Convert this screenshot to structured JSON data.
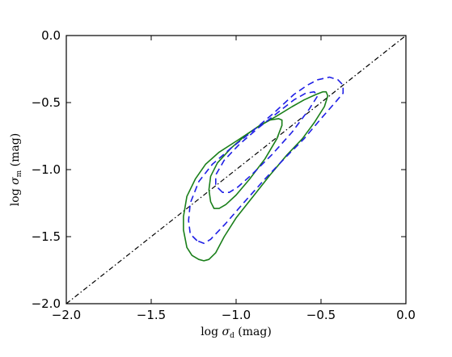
{
  "chart_data": {
    "type": "line",
    "title": "",
    "xlabel": {
      "prefix": "log ",
      "symbol": "σ",
      "subscript": "d",
      "unit": " (mag)"
    },
    "ylabel": {
      "prefix": "log ",
      "symbol": "σ",
      "subscript": "m",
      "unit": " (mag)"
    },
    "xlim": [
      -2.0,
      0.0
    ],
    "ylim": [
      -2.0,
      0.0
    ],
    "x_ticks": [
      -2.0,
      -1.5,
      -1.0,
      -0.5,
      0.0
    ],
    "x_tick_labels": [
      "−2.0",
      "−1.5",
      "−1.0",
      "−0.5",
      "0.0"
    ],
    "y_ticks": [
      -2.0,
      -1.5,
      -1.0,
      -0.5,
      0.0
    ],
    "y_tick_labels": [
      "−2.0",
      "−1.5",
      "−1.0",
      "−0.5",
      "0.0"
    ],
    "grid": false,
    "legend": "none",
    "series": [
      {
        "style": "dashdot",
        "color": "#000000",
        "closed": false,
        "points": [
          [
            -2.0,
            -2.0
          ],
          [
            0.0,
            0.0
          ]
        ]
      },
      {
        "style": "solid",
        "color": "#1a7f1a",
        "closed": true,
        "points": [
          [
            -1.19,
            -1.68
          ],
          [
            -1.22,
            -1.67
          ],
          [
            -1.26,
            -1.64
          ],
          [
            -1.29,
            -1.58
          ],
          [
            -1.31,
            -1.45
          ],
          [
            -1.31,
            -1.35
          ],
          [
            -1.29,
            -1.2
          ],
          [
            -1.24,
            -1.07
          ],
          [
            -1.18,
            -0.96
          ],
          [
            -1.1,
            -0.87
          ],
          [
            -0.99,
            -0.78
          ],
          [
            -0.87,
            -0.68
          ],
          [
            -0.76,
            -0.6
          ],
          [
            -0.67,
            -0.53
          ],
          [
            -0.6,
            -0.48
          ],
          [
            -0.53,
            -0.44
          ],
          [
            -0.49,
            -0.42
          ],
          [
            -0.47,
            -0.42
          ],
          [
            -0.46,
            -0.45
          ],
          [
            -0.48,
            -0.53
          ],
          [
            -0.54,
            -0.65
          ],
          [
            -0.61,
            -0.77
          ],
          [
            -0.7,
            -0.89
          ],
          [
            -0.8,
            -1.04
          ],
          [
            -0.9,
            -1.2
          ],
          [
            -1.0,
            -1.36
          ],
          [
            -1.07,
            -1.5
          ],
          [
            -1.12,
            -1.62
          ],
          [
            -1.16,
            -1.67
          ]
        ]
      },
      {
        "style": "solid",
        "color": "#1a7f1a",
        "closed": true,
        "points": [
          [
            -1.13,
            -1.29
          ],
          [
            -1.15,
            -1.24
          ],
          [
            -1.16,
            -1.15
          ],
          [
            -1.15,
            -1.05
          ],
          [
            -1.11,
            -0.95
          ],
          [
            -1.03,
            -0.84
          ],
          [
            -0.94,
            -0.74
          ],
          [
            -0.86,
            -0.67
          ],
          [
            -0.8,
            -0.63
          ],
          [
            -0.75,
            -0.62
          ],
          [
            -0.73,
            -0.63
          ],
          [
            -0.73,
            -0.67
          ],
          [
            -0.76,
            -0.77
          ],
          [
            -0.83,
            -0.92
          ],
          [
            -0.92,
            -1.07
          ],
          [
            -1.0,
            -1.19
          ],
          [
            -1.06,
            -1.26
          ],
          [
            -1.1,
            -1.29
          ]
        ]
      },
      {
        "style": "dashed",
        "color": "#1f1fe6",
        "closed": true,
        "points": [
          [
            -1.23,
            -1.53
          ],
          [
            -1.27,
            -1.48
          ],
          [
            -1.28,
            -1.38
          ],
          [
            -1.27,
            -1.25
          ],
          [
            -1.22,
            -1.09
          ],
          [
            -1.14,
            -0.96
          ],
          [
            -1.03,
            -0.84
          ],
          [
            -0.91,
            -0.72
          ],
          [
            -0.78,
            -0.58
          ],
          [
            -0.66,
            -0.44
          ],
          [
            -0.58,
            -0.37
          ],
          [
            -0.52,
            -0.33
          ],
          [
            -0.45,
            -0.31
          ],
          [
            -0.4,
            -0.33
          ],
          [
            -0.37,
            -0.37
          ],
          [
            -0.37,
            -0.43
          ],
          [
            -0.41,
            -0.49
          ],
          [
            -0.5,
            -0.62
          ],
          [
            -0.6,
            -0.77
          ],
          [
            -0.71,
            -0.91
          ],
          [
            -0.83,
            -1.07
          ],
          [
            -0.95,
            -1.24
          ],
          [
            -1.06,
            -1.4
          ],
          [
            -1.15,
            -1.52
          ],
          [
            -1.19,
            -1.55
          ]
        ]
      },
      {
        "style": "dashed",
        "color": "#1f1fe6",
        "closed": true,
        "points": [
          [
            -1.08,
            -1.17
          ],
          [
            -1.12,
            -1.12
          ],
          [
            -1.12,
            -1.04
          ],
          [
            -1.07,
            -0.93
          ],
          [
            -0.98,
            -0.81
          ],
          [
            -0.87,
            -0.69
          ],
          [
            -0.76,
            -0.58
          ],
          [
            -0.66,
            -0.48
          ],
          [
            -0.59,
            -0.43
          ],
          [
            -0.54,
            -0.42
          ],
          [
            -0.52,
            -0.45
          ],
          [
            -0.57,
            -0.55
          ],
          [
            -0.67,
            -0.72
          ],
          [
            -0.79,
            -0.89
          ],
          [
            -0.91,
            -1.04
          ],
          [
            -0.99,
            -1.13
          ],
          [
            -1.04,
            -1.17
          ]
        ]
      }
    ]
  }
}
